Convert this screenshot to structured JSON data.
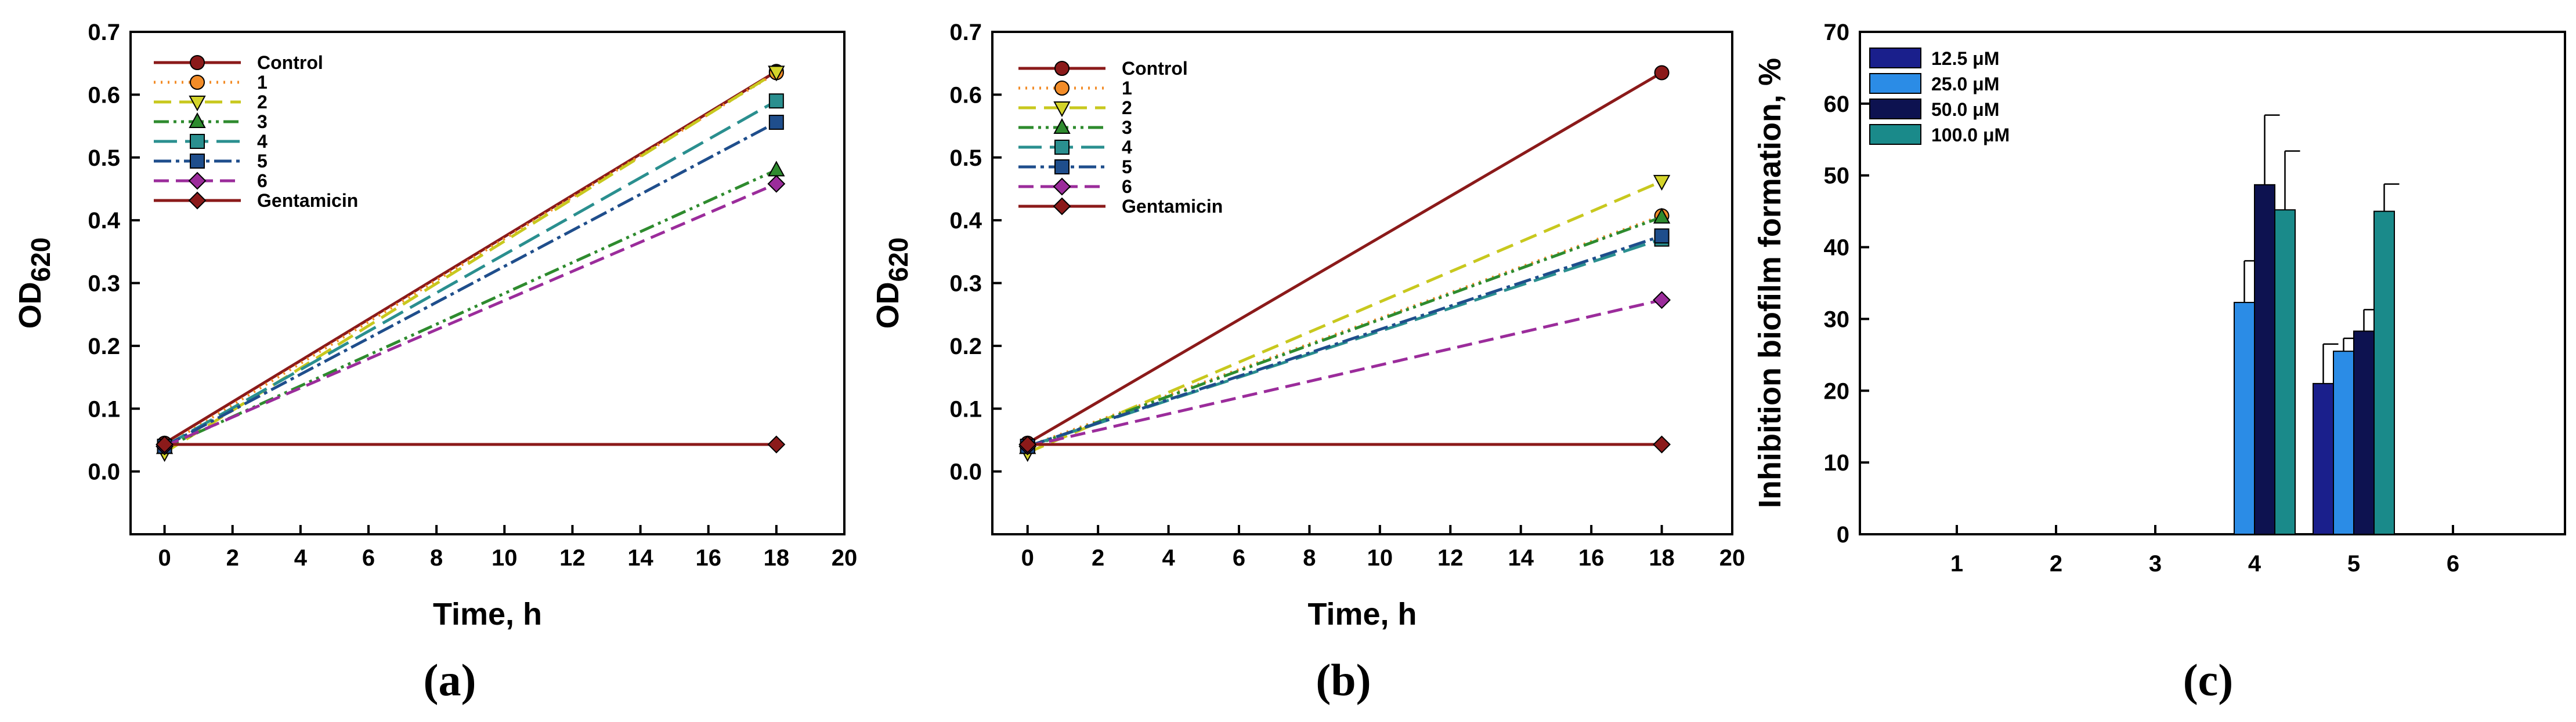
{
  "chart_data": [
    {
      "type": "line",
      "panel_label": "(a)",
      "xlabel": "Time, h",
      "ylabel_main": "OD",
      "ylabel_sub": "620",
      "xlim": [
        -1,
        20
      ],
      "ylim": [
        -0.1,
        0.7
      ],
      "xticks": [
        0,
        2,
        4,
        6,
        8,
        10,
        12,
        14,
        16,
        18,
        20
      ],
      "xtick_labels": [
        "0",
        "2",
        "4",
        "6",
        "8",
        "10",
        "12",
        "14",
        "16",
        "18",
        "20"
      ],
      "yticks": [
        0.0,
        0.1,
        0.2,
        0.3,
        0.4,
        0.5,
        0.6,
        0.7
      ],
      "ytick_labels": [
        "0.0",
        "0.1",
        "0.2",
        "0.3",
        "0.4",
        "0.5",
        "0.6",
        "0.7"
      ],
      "legend_position": "top-left",
      "series": [
        {
          "name": "Control",
          "x": [
            0,
            18
          ],
          "y": [
            0.045,
            0.637
          ],
          "color": "#8b1a1a",
          "dash": "",
          "marker": "circle",
          "marker_color": "#8b1a1a"
        },
        {
          "name": "1",
          "x": [
            0,
            18
          ],
          "y": [
            0.04,
            0.635
          ],
          "color": "#f28c28",
          "dash": "3,9",
          "marker": "circle",
          "marker_color": "#f28c28"
        },
        {
          "name": "2",
          "x": [
            0,
            18
          ],
          "y": [
            0.03,
            0.636
          ],
          "color": "#c8c81e",
          "dash": "30,14",
          "marker": "triangle-down",
          "marker_color": "#d4d42a"
        },
        {
          "name": "3",
          "x": [
            0,
            18
          ],
          "y": [
            0.038,
            0.48
          ],
          "color": "#2e8b2e",
          "dash": "26,8,5,8,5,8",
          "marker": "triangle-up",
          "marker_color": "#2e8b2e"
        },
        {
          "name": "4",
          "x": [
            0,
            18
          ],
          "y": [
            0.04,
            0.59
          ],
          "color": "#2a8f8f",
          "dash": "40,14",
          "marker": "square",
          "marker_color": "#2a8f8f"
        },
        {
          "name": "5",
          "x": [
            0,
            18
          ],
          "y": [
            0.04,
            0.556
          ],
          "color": "#1f4e8c",
          "dash": "30,8,6,8",
          "marker": "square",
          "marker_color": "#1f4e8c"
        },
        {
          "name": "6",
          "x": [
            0,
            18
          ],
          "y": [
            0.04,
            0.458
          ],
          "color": "#9b2c9b",
          "dash": "26,12",
          "marker": "diamond",
          "marker_color": "#9b2c9b"
        },
        {
          "name": "Gentamicin",
          "x": [
            0,
            18
          ],
          "y": [
            0.043,
            0.043
          ],
          "color": "#8b1a1a",
          "dash": "",
          "marker": "diamond",
          "marker_color": "#8b1a1a"
        }
      ]
    },
    {
      "type": "line",
      "panel_label": "(b)",
      "xlabel": "Time, h",
      "ylabel_main": "OD",
      "ylabel_sub": "620",
      "xlim": [
        -1,
        20
      ],
      "ylim": [
        -0.1,
        0.7
      ],
      "xticks": [
        0,
        2,
        4,
        6,
        8,
        10,
        12,
        14,
        16,
        18,
        20
      ],
      "xtick_labels": [
        "0",
        "2",
        "4",
        "6",
        "8",
        "10",
        "12",
        "14",
        "16",
        "18",
        "20"
      ],
      "yticks": [
        0.0,
        0.1,
        0.2,
        0.3,
        0.4,
        0.5,
        0.6,
        0.7
      ],
      "ytick_labels": [
        "0.0",
        "0.1",
        "0.2",
        "0.3",
        "0.4",
        "0.5",
        "0.6",
        "0.7"
      ],
      "legend_position": "top-left",
      "series": [
        {
          "name": "Control",
          "x": [
            0,
            18
          ],
          "y": [
            0.045,
            0.635
          ],
          "color": "#8b1a1a",
          "dash": "",
          "marker": "circle",
          "marker_color": "#8b1a1a"
        },
        {
          "name": "1",
          "x": [
            0,
            18
          ],
          "y": [
            0.04,
            0.407
          ],
          "color": "#f28c28",
          "dash": "3,9",
          "marker": "circle",
          "marker_color": "#f28c28"
        },
        {
          "name": "2",
          "x": [
            0,
            18
          ],
          "y": [
            0.03,
            0.462
          ],
          "color": "#c8c81e",
          "dash": "30,14",
          "marker": "triangle-down",
          "marker_color": "#d4d42a"
        },
        {
          "name": "3",
          "x": [
            0,
            18
          ],
          "y": [
            0.038,
            0.405
          ],
          "color": "#2e8b2e",
          "dash": "26,8,5,8,5,8",
          "marker": "triangle-up",
          "marker_color": "#2e8b2e"
        },
        {
          "name": "4",
          "x": [
            0,
            18
          ],
          "y": [
            0.04,
            0.37
          ],
          "color": "#2a8f8f",
          "dash": "40,14",
          "marker": "square",
          "marker_color": "#2a8f8f"
        },
        {
          "name": "5",
          "x": [
            0,
            18
          ],
          "y": [
            0.04,
            0.375
          ],
          "color": "#1f4e8c",
          "dash": "30,8,6,8",
          "marker": "square",
          "marker_color": "#1f4e8c"
        },
        {
          "name": "6",
          "x": [
            0,
            18
          ],
          "y": [
            0.04,
            0.273
          ],
          "color": "#9b2c9b",
          "dash": "26,12",
          "marker": "diamond",
          "marker_color": "#9b2c9b"
        },
        {
          "name": "Gentamicin",
          "x": [
            0,
            18
          ],
          "y": [
            0.043,
            0.043
          ],
          "color": "#8b1a1a",
          "dash": "",
          "marker": "diamond",
          "marker_color": "#8b1a1a"
        }
      ]
    },
    {
      "type": "bar",
      "panel_label": "(c)",
      "xlabel": "",
      "ylabel": "Inhibition biofilm formation, %",
      "ylim": [
        0,
        70
      ],
      "yticks": [
        0,
        10,
        20,
        30,
        40,
        50,
        60,
        70
      ],
      "ytick_labels": [
        "0",
        "10",
        "20",
        "30",
        "40",
        "50",
        "60",
        "70"
      ],
      "categories": [
        "1",
        "2",
        "3",
        "4",
        "5",
        "6"
      ],
      "legend_position": "top-left",
      "series": [
        {
          "name": "12.5 μM",
          "color": "#1a1f8c",
          "values": [
            0,
            0,
            0,
            0,
            21,
            0
          ],
          "errors": [
            0,
            0,
            0,
            0,
            5.5,
            0
          ]
        },
        {
          "name": "25.0 μM",
          "color": "#2b8ce6",
          "values": [
            0,
            0,
            0,
            32.3,
            25.5,
            0
          ],
          "errors": [
            0,
            0,
            0,
            5.8,
            1.8,
            0
          ]
        },
        {
          "name": "50.0 μM",
          "color": "#0d1250",
          "values": [
            0,
            0,
            0,
            48.7,
            28.3,
            0
          ],
          "errors": [
            0,
            0,
            0,
            9.7,
            3,
            0
          ]
        },
        {
          "name": "100.0 μM",
          "color": "#1a8a8a",
          "values": [
            0,
            0,
            0,
            45.2,
            45,
            0
          ],
          "errors": [
            0,
            0,
            0,
            8.2,
            3.8,
            0
          ]
        }
      ]
    }
  ]
}
